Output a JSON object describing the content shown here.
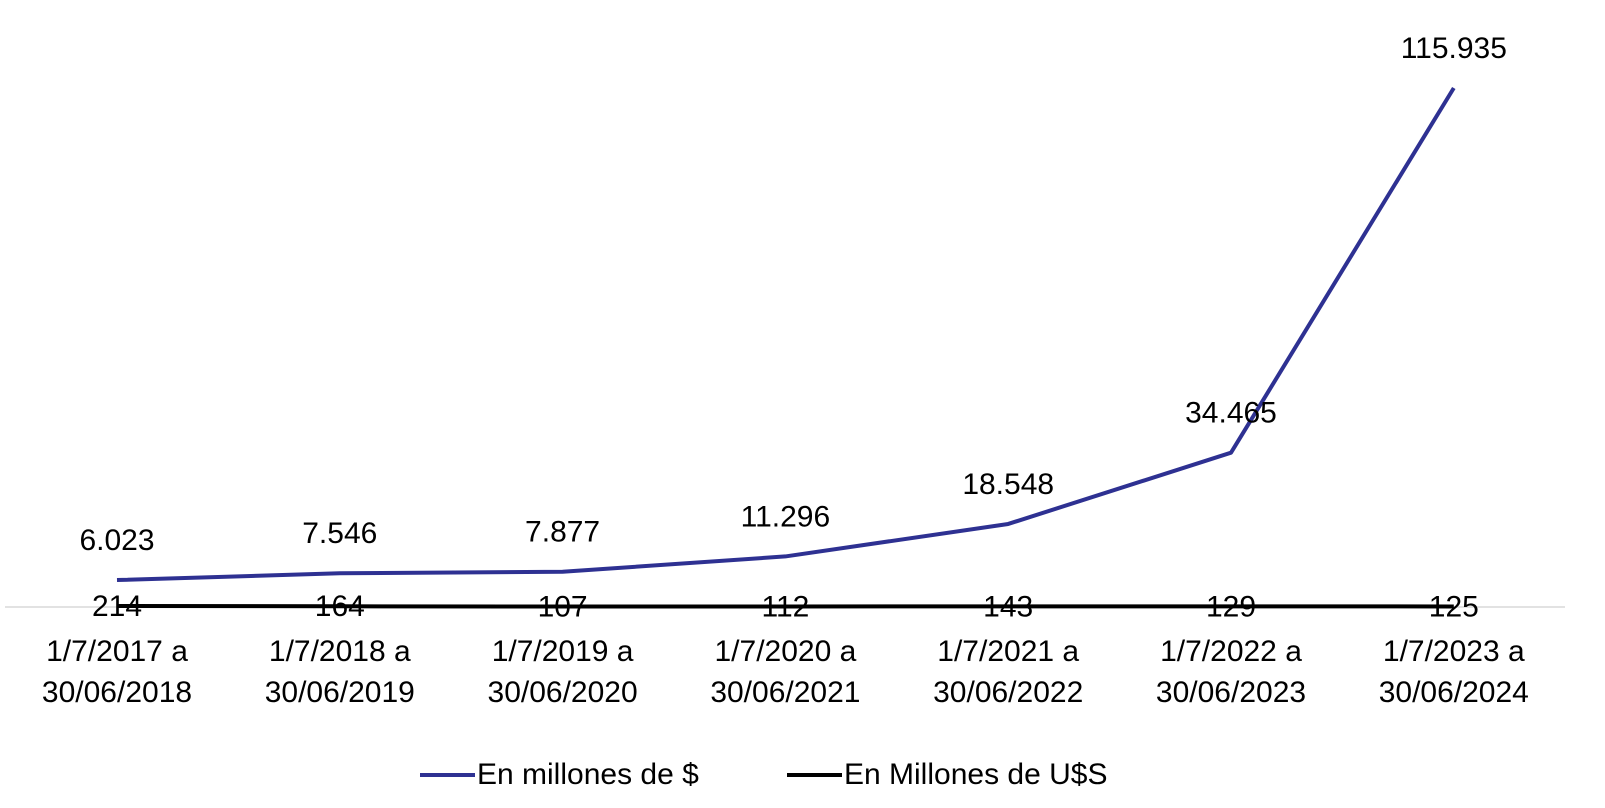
{
  "chart_data": {
    "type": "line",
    "categories": [
      "1/7/2017 a 30/06/2018",
      "1/7/2018 a 30/06/2019",
      "1/7/2019 a 30/06/2020",
      "1/7/2020 a 30/06/2021",
      "1/7/2021 a 30/06/2022",
      "1/7/2022 a 30/06/2023",
      "1/7/2023 a 30/06/2024"
    ],
    "series": [
      {
        "name": "En millones de $",
        "color": "#2e3192",
        "values": [
          6023,
          7546,
          7877,
          11296,
          18548,
          34465,
          115935
        ],
        "value_labels": [
          "6.023",
          "7.546",
          "7.877",
          "11.296",
          "18.548",
          "34.465",
          "115.935"
        ]
      },
      {
        "name": "En Millones de U$S",
        "color": "#000000",
        "values": [
          214,
          164,
          107,
          112,
          143,
          129,
          125
        ]
      }
    ],
    "legend": "bottom"
  }
}
